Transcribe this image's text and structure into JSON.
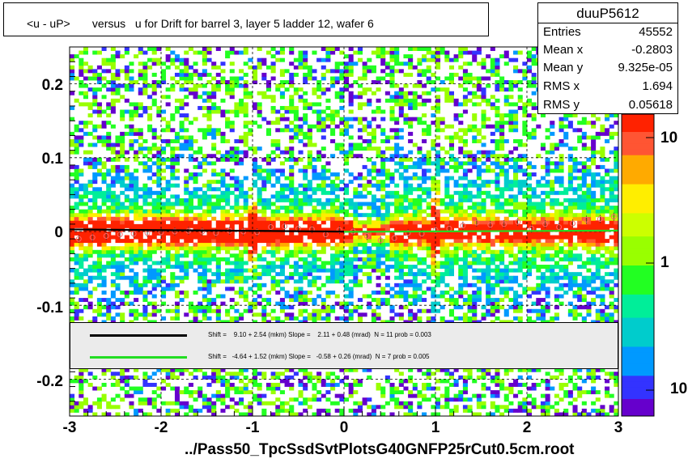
{
  "title": "<u - uP>       versus   u for Drift for barrel 3, layer 5 ladder 12, wafer 6",
  "stats": {
    "name": "duuP5612",
    "rows": [
      {
        "label": "Entries",
        "value": "45552"
      },
      {
        "label": "Mean x",
        "value": "-0.2803"
      },
      {
        "label": "Mean y",
        "value": "9.325e-05"
      },
      {
        "label": "RMS x",
        "value": "1.694"
      },
      {
        "label": "RMS y",
        "value": "0.05618"
      }
    ]
  },
  "legend": [
    {
      "color": "#000000",
      "text": "Shift =    9.10 + 2.54 (mkm) Slope =    2.11 + 0.48 (mrad)  N = 11 prob = 0.003"
    },
    {
      "color": "#22dd22",
      "text": "Shift =   -4.64 + 1.52 (mkm) Slope =   -0.58 + 0.26 (mrad)  N = 7 prob = 0.005"
    }
  ],
  "footer": "../Pass50_TpcSsdSvtPlotsG40GNFP25rCut0.5cm.root",
  "colors": {
    "palette": [
      "#ffffff",
      "#6600cc",
      "#3333ff",
      "#0099ff",
      "#00cccc",
      "#00ee99",
      "#22ff22",
      "#99ff00",
      "#ccff00",
      "#ffee00",
      "#ffaa00",
      "#ff5533",
      "#ff2200"
    ],
    "fit_black": "#000000",
    "fit_green": "#22dd22",
    "profile_marker": "#ff6666"
  },
  "chart_data": {
    "type": "heatmap",
    "title": "<u - uP>       versus   u for Drift for barrel 3, layer 5 ladder 12, wafer 6",
    "xlabel": "",
    "ylabel": "",
    "xlim": [
      -3,
      3
    ],
    "ylim": [
      -0.25,
      0.25
    ],
    "x_ticks": [
      "-3",
      "-2",
      "-1",
      "0",
      "1",
      "2",
      "3"
    ],
    "y_ticks": [
      "-0.2",
      "-0.1",
      "0",
      "0.1",
      "0.2"
    ],
    "z_scale": "log",
    "z_ticks": [
      "10",
      "1",
      "10"
    ],
    "grid": true,
    "fit_lines": [
      {
        "color": "black",
        "x_range": [
          -3,
          0
        ],
        "y_start": 0.0028,
        "y_end": -0.0001
      },
      {
        "color": "green",
        "x_range": [
          0,
          3
        ],
        "y_start": -0.0004,
        "y_end": 0.0012
      }
    ],
    "profile": {
      "x": [
        -2.9,
        -2.75,
        -2.6,
        -2.45,
        -2.3,
        -2.15,
        -2.0,
        -1.85,
        -1.7,
        -1.55,
        -1.4,
        -1.25,
        -1.1,
        -0.95,
        -0.8,
        -0.65,
        -0.5,
        -0.35,
        -0.2,
        -0.05,
        0.1,
        0.25,
        0.4,
        0.55,
        0.7,
        0.85,
        1.0,
        1.15,
        1.3,
        1.45,
        1.6,
        1.75,
        1.9,
        2.05,
        2.2,
        2.35,
        2.5,
        2.65,
        2.8,
        2.95
      ],
      "y": [
        -0.01,
        -0.008,
        -0.006,
        -0.004,
        -0.003,
        -0.002,
        -0.001,
        0.0,
        0.001,
        0.0,
        -0.002,
        0.001,
        0.0,
        -0.001,
        0.006,
        0.007,
        0.004,
        0.003,
        -0.004,
        0.002,
        0.0,
        -0.006,
        -0.012,
        -0.009,
        -0.002,
        -0.003,
        0.002,
        0.004,
        0.008,
        0.012,
        0.009,
        0.01,
        0.013,
        0.004,
        0.01,
        0.006,
        0.011,
        0.016,
        0.017,
        0.02
      ]
    }
  }
}
